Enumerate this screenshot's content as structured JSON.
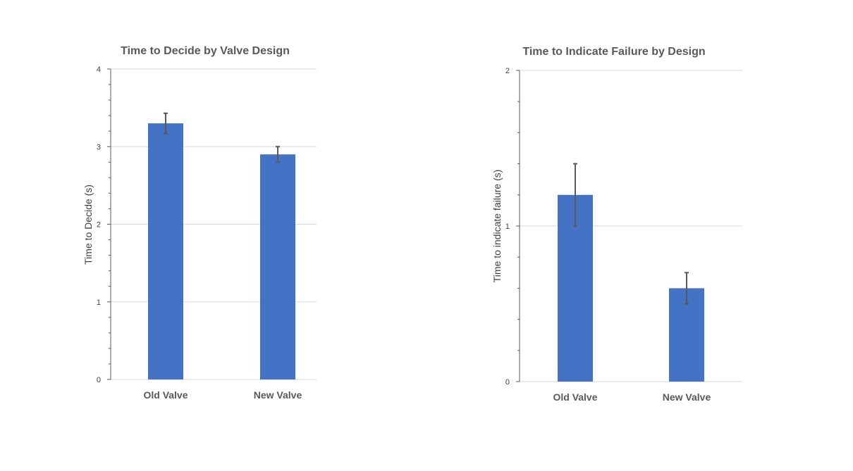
{
  "chart_data": [
    {
      "type": "bar",
      "title": "Time to Decide by Valve Design",
      "xlabel": "",
      "ylabel": "Time to Decide (s)",
      "categories": [
        "Old Valve",
        "New Valve"
      ],
      "values": [
        3.3,
        2.9
      ],
      "error": [
        0.13,
        0.1
      ],
      "ylim": [
        0,
        4
      ],
      "yticks": [
        "0",
        "1",
        "2",
        "3",
        "4"
      ],
      "minor_ticks_per_major": 5,
      "grid": true,
      "legend": "none",
      "bar_color": "#4472C4",
      "error_color": "#595959",
      "grid_color": "#D9D9D9"
    },
    {
      "type": "bar",
      "title": "Time to Indicate Failure by Design",
      "xlabel": "",
      "ylabel": "Time to indicate failure (s)",
      "categories": [
        "Old Valve",
        "New Valve"
      ],
      "values": [
        1.2,
        0.6
      ],
      "error": [
        0.2,
        0.1
      ],
      "ylim": [
        0,
        2
      ],
      "yticks": [
        "0",
        "1",
        "2"
      ],
      "minor_ticks_per_major": 5,
      "grid": true,
      "legend": "none",
      "bar_color": "#4472C4",
      "error_color": "#595959",
      "grid_color": "#D9D9D9"
    }
  ]
}
